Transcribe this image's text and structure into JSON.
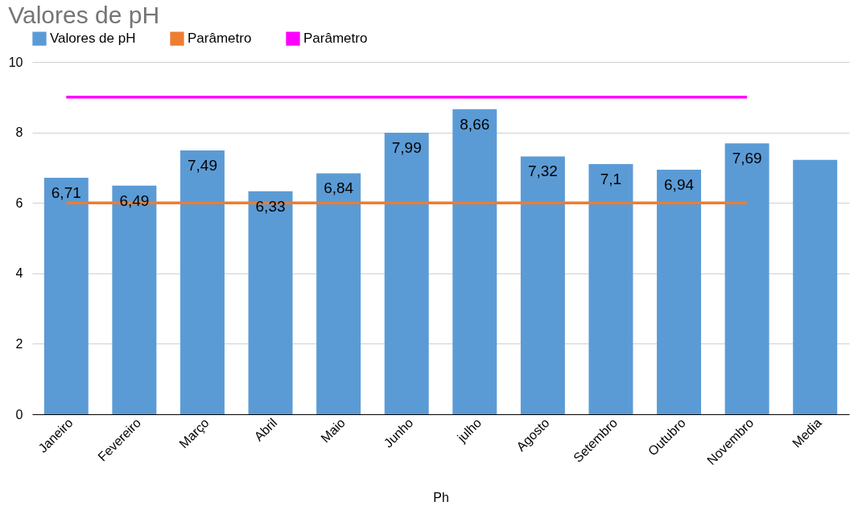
{
  "chart_data": {
    "type": "bar",
    "title": "Valores de pH",
    "xlabel": "Ph",
    "categories": [
      "Janeiro",
      "Fevereiro",
      "Março",
      "Abril",
      "Maio",
      "Junho",
      "julho",
      "Agosto",
      "Setembro",
      "Outubro",
      "Novembro",
      "Media"
    ],
    "series": [
      {
        "name": "Valores de pH",
        "color": "#5b9bd5",
        "values": [
          6.71,
          6.49,
          7.49,
          6.33,
          6.84,
          7.99,
          8.66,
          7.32,
          7.1,
          6.94,
          7.69,
          7.22
        ],
        "value_labels": [
          "6,71",
          "6,49",
          "7,49",
          "6,33",
          "6,84",
          "7,99",
          "8,66",
          "7,32",
          "7,1",
          "6,94",
          "7,69",
          null
        ]
      },
      {
        "name": "Parâmetro",
        "type": "line",
        "color": "#ed7d31",
        "values": [
          6,
          6,
          6,
          6,
          6,
          6,
          6,
          6,
          6,
          6,
          6,
          null
        ]
      },
      {
        "name": "Parâmetro",
        "type": "line",
        "color": "#ff00ff",
        "values": [
          9,
          9,
          9,
          9,
          9,
          9,
          9,
          9,
          9,
          9,
          9,
          null
        ]
      }
    ],
    "ylim": [
      0,
      10
    ],
    "yticks": [
      0,
      2,
      4,
      6,
      8,
      10
    ],
    "grid": "y",
    "legend": "top",
    "marker": "none"
  }
}
